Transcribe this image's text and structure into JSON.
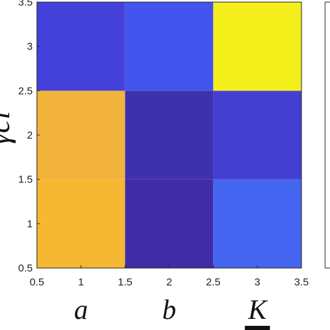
{
  "chart_data": {
    "type": "heatmap",
    "title": "",
    "xlabel": "",
    "ylabel": "γci",
    "xlim": [
      0.5,
      3.5
    ],
    "ylim": [
      0.5,
      3.5
    ],
    "x_ticks": [
      "0.5",
      "1",
      "1.5",
      "2",
      "2.5",
      "3",
      "3.5"
    ],
    "y_ticks": [
      "0.5",
      "1",
      "1.5",
      "2",
      "2.5",
      "3",
      "3.5"
    ],
    "categories": [
      "a",
      "b",
      "K"
    ],
    "y_categories": [
      1,
      2,
      3
    ],
    "values": [
      [
        0.78,
        0.06,
        0.42
      ],
      [
        0.74,
        0.08,
        0.14
      ],
      [
        0.18,
        0.3,
        1.0
      ]
    ],
    "colormap": [
      "#3e26a8",
      "#4a43f2",
      "#2d86f6",
      "#1bb8c4",
      "#63d17a",
      "#e8ba32",
      "#f9fb15"
    ],
    "cells": [
      {
        "col": "a",
        "row": 1,
        "value": 0.78,
        "color": "#f6b732"
      },
      {
        "col": "b",
        "row": 1,
        "value": 0.06,
        "color": "#3f2ca6"
      },
      {
        "col": "K",
        "row": 1,
        "value": 0.42,
        "color": "#4465f0"
      },
      {
        "col": "a",
        "row": 2,
        "value": 0.74,
        "color": "#f2b33d"
      },
      {
        "col": "b",
        "row": 2,
        "value": 0.08,
        "color": "#3f30ad"
      },
      {
        "col": "K",
        "row": 2,
        "value": 0.14,
        "color": "#443fd1"
      },
      {
        "col": "a",
        "row": 3,
        "value": 0.18,
        "color": "#4341d9"
      },
      {
        "col": "b",
        "row": 3,
        "value": 0.3,
        "color": "#4455ee"
      },
      {
        "col": "K",
        "row": 3,
        "value": 1.0,
        "color": "#f5ef1c"
      }
    ],
    "grid": false,
    "colorbar": "right, partially visible"
  }
}
